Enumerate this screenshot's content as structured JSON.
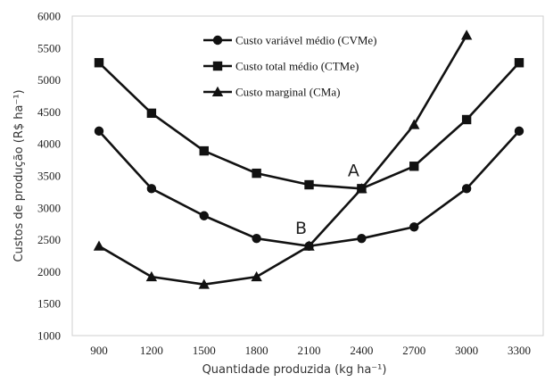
{
  "chart_data": {
    "type": "line",
    "xlabel": "Quantidade produzida (kg ha⁻¹)",
    "ylabel": "Custos de produção (R$ ha⁻¹)",
    "ylim": [
      1000,
      6000
    ],
    "yticks": [
      1000,
      1500,
      2000,
      2500,
      3000,
      3500,
      4000,
      4500,
      5000,
      5500,
      6000
    ],
    "categories": [
      "900",
      "1200",
      "1500",
      "1800",
      "2100",
      "2400",
      "2700",
      "3000",
      "3300"
    ],
    "grid": false,
    "legend_position": "top-center",
    "series": [
      {
        "name": "Custo variável médio (CVMe)",
        "marker": "circle",
        "values": [
          4200,
          3300,
          2875,
          2520,
          2400,
          2520,
          2700,
          3300,
          4200
        ]
      },
      {
        "name": "Custo total médio (CTMe)",
        "marker": "square",
        "values": [
          5270,
          4480,
          3890,
          3540,
          3360,
          3300,
          3650,
          4380,
          5270
        ]
      },
      {
        "name": "Custo marginal (CMa)",
        "marker": "triangle",
        "values": [
          2400,
          1920,
          1800,
          1920,
          2400,
          3300,
          4300,
          5700,
          null
        ]
      }
    ],
    "annotations": [
      {
        "text": "A",
        "near_category": "2400",
        "value": 3300
      },
      {
        "text": "B",
        "near_category": "2100",
        "value": 2400
      }
    ]
  }
}
